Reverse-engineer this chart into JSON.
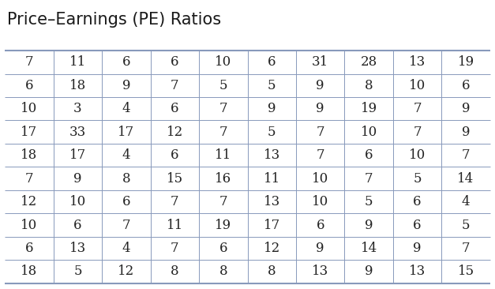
{
  "title": "Price–Earnings (PE) Ratios",
  "table_data": [
    [
      7,
      11,
      6,
      6,
      10,
      6,
      31,
      28,
      13,
      19
    ],
    [
      6,
      18,
      9,
      7,
      5,
      5,
      9,
      8,
      10,
      6
    ],
    [
      10,
      3,
      4,
      6,
      7,
      9,
      9,
      19,
      7,
      9
    ],
    [
      17,
      33,
      17,
      12,
      7,
      5,
      7,
      10,
      7,
      9
    ],
    [
      18,
      17,
      4,
      6,
      11,
      13,
      7,
      6,
      10,
      7
    ],
    [
      7,
      9,
      8,
      15,
      16,
      11,
      10,
      7,
      5,
      14
    ],
    [
      12,
      10,
      6,
      7,
      7,
      13,
      10,
      5,
      6,
      4
    ],
    [
      10,
      6,
      7,
      11,
      19,
      17,
      6,
      9,
      6,
      5
    ],
    [
      6,
      13,
      4,
      7,
      6,
      12,
      9,
      14,
      9,
      7
    ],
    [
      18,
      5,
      12,
      8,
      8,
      8,
      13,
      9,
      13,
      15
    ]
  ],
  "n_rows": 10,
  "n_cols": 10,
  "title_fontsize": 15,
  "cell_fontsize": 12,
  "title_color": "#1a1a1a",
  "cell_text_color": "#222222",
  "grid_color": "#8899bb",
  "bg_color": "#ffffff",
  "header_line_color": "#8899bb",
  "title_font": "DejaVu Sans",
  "cell_font": "DejaVu Serif",
  "fig_width": 6.27,
  "fig_height": 3.66,
  "dpi": 100
}
